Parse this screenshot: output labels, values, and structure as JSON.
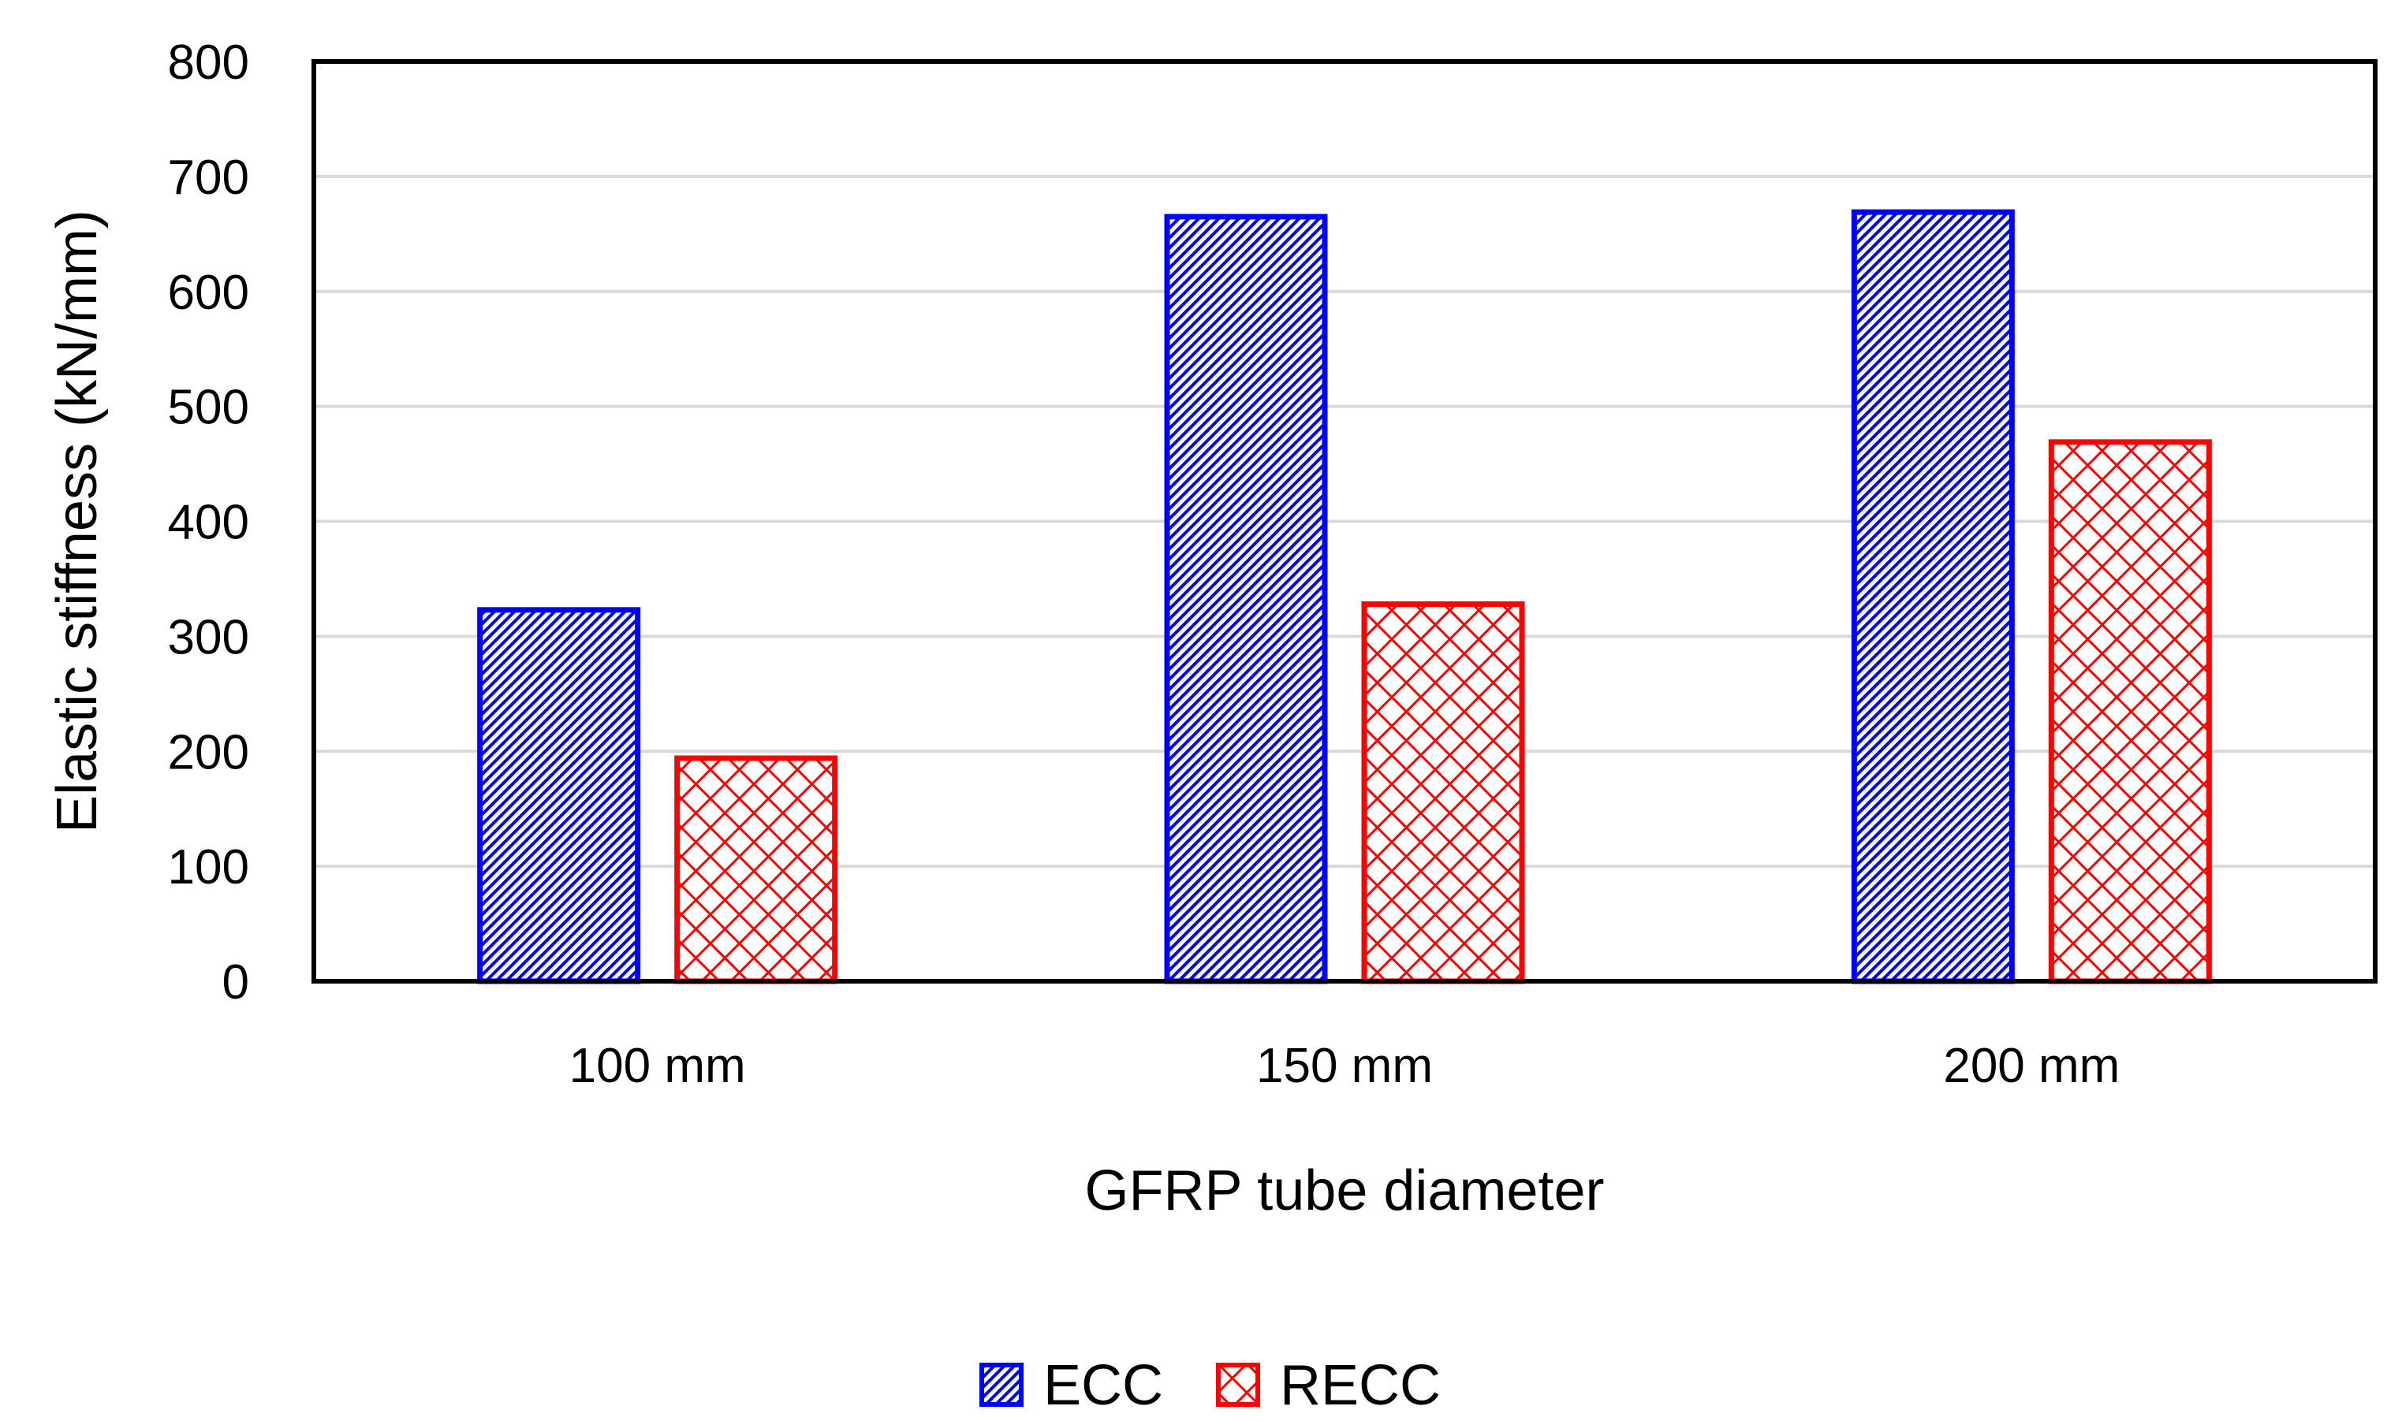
{
  "chart_data": {
    "type": "bar",
    "title": "",
    "xlabel": "GFRP tube diameter",
    "ylabel": "Elastic stiffness (kN/mm)",
    "categories": [
      "100 mm",
      "150 mm",
      "200 mm"
    ],
    "series": [
      {
        "name": "ECC",
        "values": [
          323,
          665,
          669
        ],
        "color": "#0000ff",
        "pattern": "diagonal-hatch"
      },
      {
        "name": "RECC",
        "values": [
          194,
          328,
          469
        ],
        "color": "#ff0000",
        "pattern": "cross-hatch"
      }
    ],
    "ylim": [
      0,
      800
    ],
    "yticks": [
      "0",
      "100",
      "200",
      "300",
      "400",
      "500",
      "600",
      "700",
      "800"
    ],
    "grid": true,
    "legend": "bottom-center"
  }
}
